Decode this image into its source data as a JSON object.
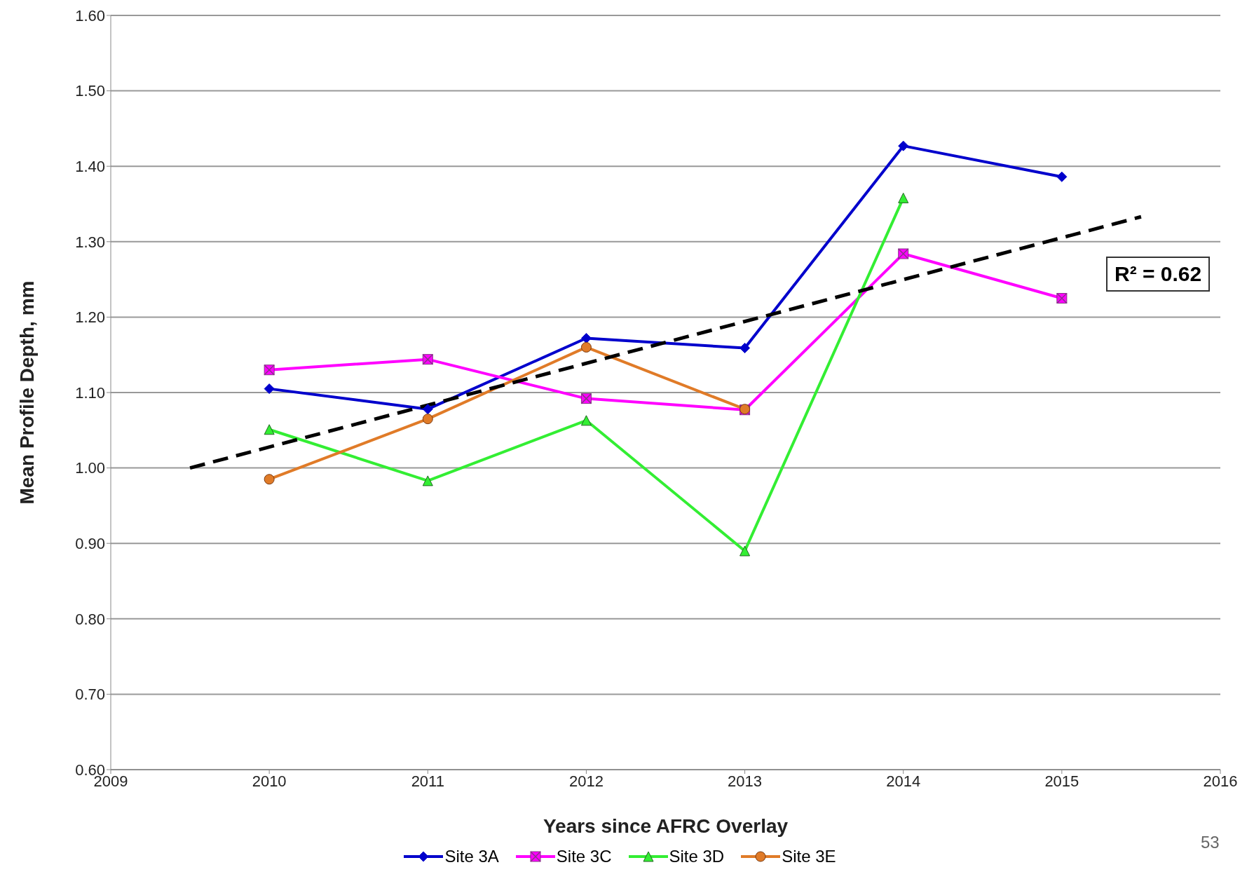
{
  "chart_data": {
    "type": "line",
    "xlabel": "Years since AFRC Overlay",
    "ylabel": "Mean Profile Depth, mm",
    "xlim": [
      2009,
      2016
    ],
    "xticks": [
      2009,
      2010,
      2011,
      2012,
      2013,
      2014,
      2015,
      2016
    ],
    "ylim": [
      0.6,
      1.6
    ],
    "yticks": [
      {
        "value": 0.6,
        "label": "0.60"
      },
      {
        "value": 0.7,
        "label": "0.70"
      },
      {
        "value": 0.8,
        "label": "0.80"
      },
      {
        "value": 0.9,
        "label": "0.90"
      },
      {
        "value": 1.0,
        "label": "1.00"
      },
      {
        "value": 1.1,
        "label": "1.10"
      },
      {
        "value": 1.2,
        "label": "1.20"
      },
      {
        "value": 1.3,
        "label": "1.30"
      },
      {
        "value": 1.4,
        "label": "1.40"
      },
      {
        "value": 1.5,
        "label": "1.50"
      },
      {
        "value": 1.6,
        "label": "1.60"
      }
    ],
    "grid": "y",
    "legend": "bottom",
    "series": [
      {
        "name": "Site 3A",
        "color": "#0000cc",
        "marker": "diamond",
        "x": [
          2010,
          2011,
          2012,
          2013,
          2014,
          2015
        ],
        "values": [
          1.105,
          1.078,
          1.172,
          1.159,
          1.427,
          1.386
        ]
      },
      {
        "name": "Site 3C",
        "color": "#ff00ff",
        "marker": "square",
        "x": [
          2010,
          2011,
          2012,
          2013,
          2014,
          2015
        ],
        "values": [
          1.13,
          1.144,
          1.092,
          1.077,
          1.284,
          1.225
        ]
      },
      {
        "name": "Site 3D",
        "color": "#33ee33",
        "marker": "triangle",
        "x": [
          2010,
          2011,
          2012,
          2013,
          2014
        ],
        "values": [
          1.051,
          0.983,
          1.063,
          0.89,
          1.358
        ]
      },
      {
        "name": "Site 3E",
        "color": "#e07b28",
        "marker": "circle",
        "x": [
          2010,
          2011,
          2012,
          2013
        ],
        "values": [
          0.985,
          1.065,
          1.16,
          1.078
        ]
      },
      {
        "type": "line",
        "color": "#000000",
        "marker": "none",
        "line_style": "dashed",
        "x": [
          2009.5,
          2015.5
        ],
        "values": [
          1.0,
          1.333
        ]
      }
    ],
    "annotations": [
      "R² = 0.62",
      "53"
    ]
  }
}
